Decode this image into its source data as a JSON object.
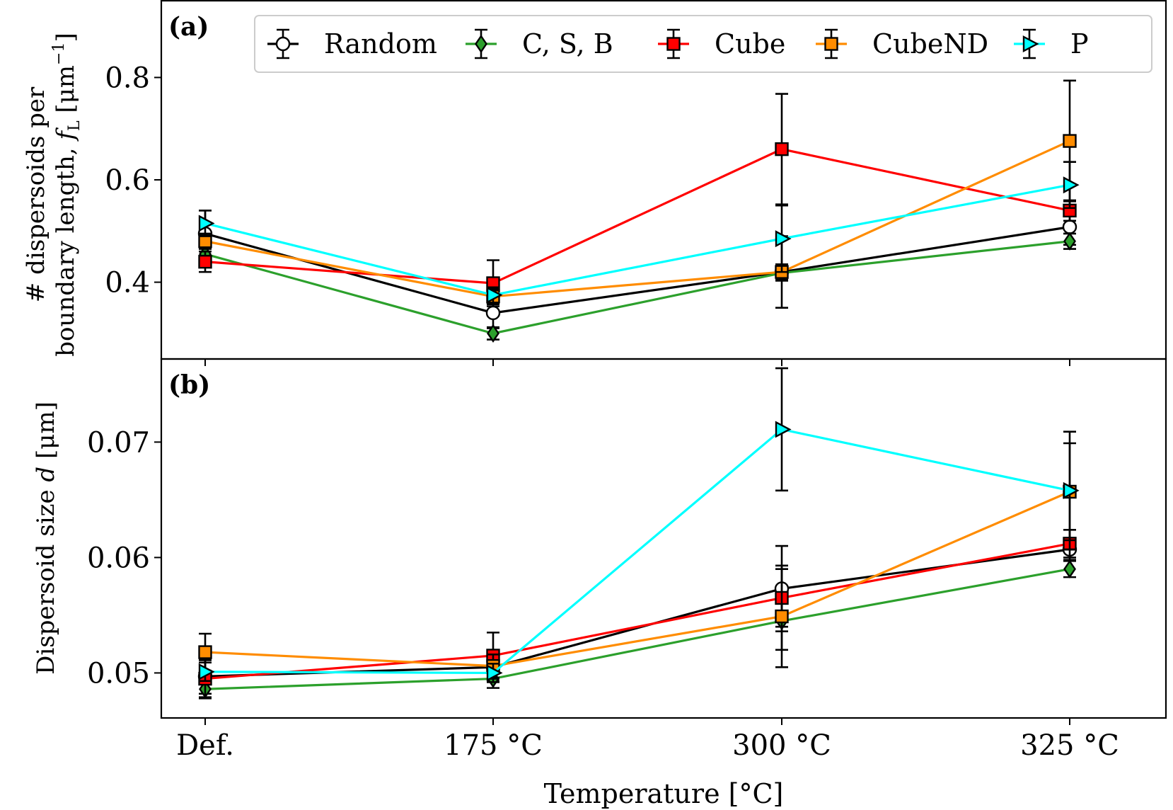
{
  "chart_data": {
    "type": "line",
    "xlabel": "Temperature [°C]",
    "categories": [
      "Def.",
      "175 °C",
      "300 °C",
      "325 °C"
    ],
    "legend": {
      "placement": "top-right",
      "entries": [
        "Random",
        "C, S, B",
        "Cube",
        "CubeND",
        "P"
      ]
    },
    "series_styles": [
      {
        "name": "Random",
        "color": "#000000",
        "marker": "circle",
        "face": "#ffffff"
      },
      {
        "name": "C, S, B",
        "color": "#2ca02c",
        "marker": "diamond",
        "face": "#2ca02c"
      },
      {
        "name": "Cube",
        "color": "#ff0000",
        "marker": "square",
        "face": "#ff0000"
      },
      {
        "name": "CubeND",
        "color": "#ff8c00",
        "marker": "square",
        "face": "#ff8c00"
      },
      {
        "name": "P",
        "color": "#00ffff",
        "marker": "triangle-right",
        "face": "#00ffff"
      }
    ],
    "panels": [
      {
        "label": "(a)",
        "ylabel_line1": "# dispersoids per",
        "ylabel_line2": "boundary length, ",
        "ylabel_symbol": "f",
        "ylabel_sub": "L",
        "ylabel_unit": " [μm",
        "ylabel_exp": "−1",
        "ylabel_close": "]",
        "ylim": [
          0.25,
          0.95
        ],
        "yticks": [
          0.4,
          0.6,
          0.8
        ],
        "ytick_labels": [
          "0.4",
          "0.6",
          "0.8"
        ],
        "series": [
          {
            "name": "Random",
            "values": [
              0.495,
              0.34,
              0.42,
              0.508
            ],
            "err": [
              0.045,
              0.03,
              0.07,
              0.035
            ]
          },
          {
            "name": "C, S, B",
            "values": [
              0.455,
              0.3,
              0.418,
              0.48
            ],
            "err": [
              0.015,
              0.012,
              0.015,
              0.015
            ]
          },
          {
            "name": "Cube",
            "values": [
              0.44,
              0.398,
              0.66,
              0.54
            ],
            "err": [
              0.02,
              0.045,
              0.108,
              0.02
            ]
          },
          {
            "name": "CubeND",
            "values": [
              0.48,
              0.372,
              0.42,
              0.676
            ],
            "err": [
              0.015,
              0.015,
              0.015,
              0.118
            ]
          },
          {
            "name": "P",
            "values": [
              0.515,
              0.375,
              0.485,
              0.59
            ],
            "err": [
              0.025,
              0.015,
              0.065,
              0.045
            ]
          }
        ]
      },
      {
        "label": "(b)",
        "ylabel_line1": "Dispersoid size ",
        "ylabel_symbol": "d",
        "ylabel_unit": " [μm]",
        "ylim": [
          0.0461,
          0.0772
        ],
        "yticks": [
          0.05,
          0.06,
          0.07
        ],
        "ytick_labels": [
          "0.05",
          "0.06",
          "0.07"
        ],
        "series": [
          {
            "name": "Random",
            "values": [
              0.0497,
              0.0505,
              0.0573,
              0.0607
            ],
            "err": [
              0.0015,
              0.0012,
              0.0037,
              0.0009
            ]
          },
          {
            "name": "C, S, B",
            "values": [
              0.0486,
              0.0495,
              0.0545,
              0.059
            ],
            "err": [
              0.0008,
              0.0008,
              0.0025,
              0.0007
            ]
          },
          {
            "name": "Cube",
            "values": [
              0.0495,
              0.0515,
              0.0565,
              0.0612
            ],
            "err": [
              0.0016,
              0.002,
              0.0025,
              0.0012
            ]
          },
          {
            "name": "CubeND",
            "values": [
              0.0518,
              0.0506,
              0.0549,
              0.0657
            ],
            "err": [
              0.0016,
              0.001,
              0.0044,
              0.0042
            ]
          },
          {
            "name": "P",
            "values": [
              0.0501,
              0.05,
              0.0711,
              0.0658
            ],
            "err": [
              0.0008,
              0.0008,
              0.0053,
              0.0051
            ]
          }
        ]
      }
    ]
  }
}
